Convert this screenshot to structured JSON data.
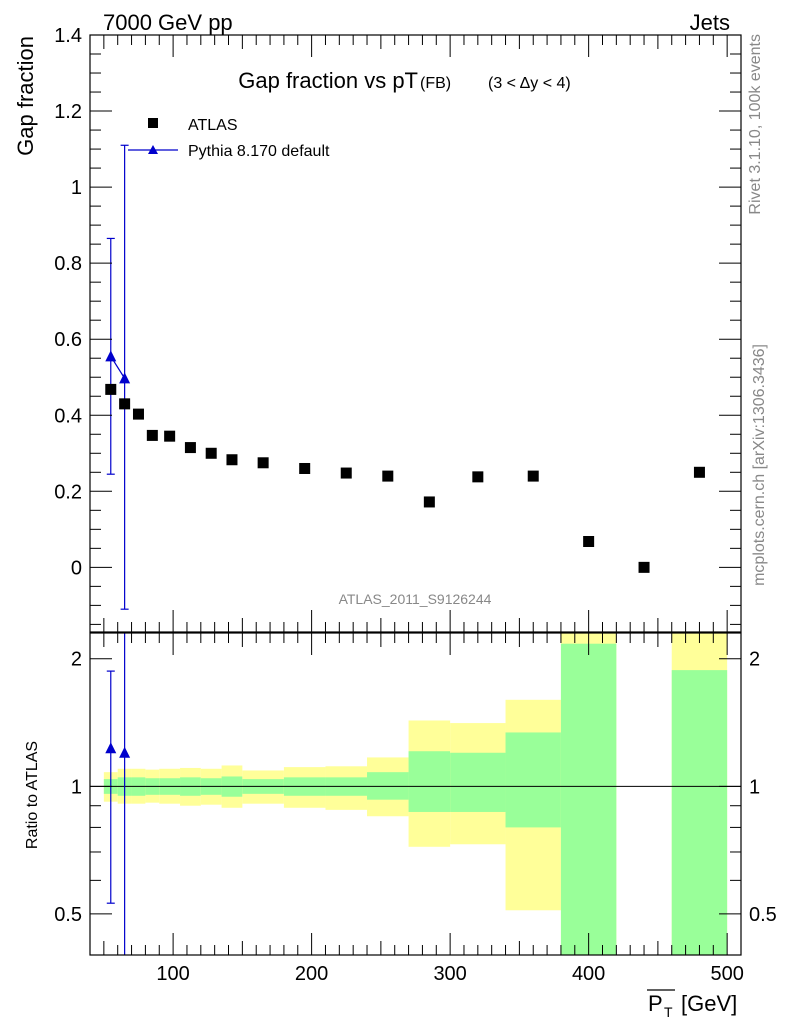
{
  "header": {
    "energy": "7000 GeV pp",
    "process": "Jets"
  },
  "side_labels": {
    "rivet": "Rivet 3.1.10,  100k events",
    "mcplots": "mcplots.cern.ch [arXiv:1306.3436]"
  },
  "colors": {
    "atlas": "#000000",
    "pythia": "#0000cc",
    "band_green": "#99ff99",
    "band_yellow": "#ffff99",
    "analysis_id": "#888888"
  },
  "chart_data": [
    {
      "type": "scatter",
      "panel": "main",
      "title": "Gap fraction vs pT",
      "title_sub": "(FB)",
      "title_range": "(3 < Δy < 4)",
      "ylabel": "Gap fraction",
      "analysis_id": "ATLAS_2011_S9126244",
      "xlim": [
        40,
        510
      ],
      "ylim": [
        -0.17,
        1.4
      ],
      "y_ticks": [
        0,
        0.2,
        0.4,
        0.6,
        0.8,
        1,
        1.2,
        1.4
      ],
      "y_tick_labels": [
        "0",
        "0.2",
        "0.4",
        "0.6",
        "0.8",
        "1",
        "1.2",
        "1.4"
      ],
      "legend_position": "top-left",
      "series": [
        {
          "name": "ATLAS",
          "marker": "square",
          "x": [
            55,
            65,
            75,
            85,
            97.5,
            112.5,
            127.5,
            142.5,
            165,
            195,
            225,
            255,
            285,
            320,
            360,
            400,
            440,
            480
          ],
          "y": [
            0.468,
            0.43,
            0.403,
            0.347,
            0.345,
            0.315,
            0.3,
            0.283,
            0.275,
            0.26,
            0.248,
            0.24,
            0.172,
            0.238,
            0.24,
            0.068,
            0.0,
            0.25
          ]
        },
        {
          "name": "Pythia 8.170 default",
          "marker": "triangle",
          "x": [
            55,
            65
          ],
          "y": [
            0.555,
            0.497
          ],
          "yerr_low": [
            0.245,
            -0.11
          ],
          "yerr_high": [
            0.865,
            1.11
          ]
        }
      ]
    },
    {
      "type": "ratio",
      "panel": "ratio",
      "ylabel": "Ratio to ATLAS",
      "xlabel": "P_T [GeV]",
      "xlabel_main": "P",
      "xlabel_sub": "T",
      "xlabel_unit": "[GeV]",
      "xlim": [
        40,
        510
      ],
      "ylim": [
        0.4,
        2.3
      ],
      "y_scale": "log",
      "x_ticks": [
        100,
        200,
        300,
        400,
        500
      ],
      "x_tick_labels": [
        "100",
        "200",
        "300",
        "400",
        "500"
      ],
      "y_ticks": [
        0.5,
        1,
        2
      ],
      "y_tick_labels": [
        "0.5",
        "1",
        "2"
      ],
      "bands": [
        {
          "x_low": 50,
          "x_high": 60,
          "green_low": 0.96,
          "green_high": 1.04,
          "yellow_low": 0.92,
          "yellow_high": 1.08
        },
        {
          "x_low": 60,
          "x_high": 70,
          "green_low": 0.95,
          "green_high": 1.05,
          "yellow_low": 0.91,
          "yellow_high": 1.1
        },
        {
          "x_low": 70,
          "x_high": 80,
          "green_low": 0.95,
          "green_high": 1.05,
          "yellow_low": 0.91,
          "yellow_high": 1.1
        },
        {
          "x_low": 80,
          "x_high": 90,
          "green_low": 0.955,
          "green_high": 1.045,
          "yellow_low": 0.915,
          "yellow_high": 1.095
        },
        {
          "x_low": 90,
          "x_high": 105,
          "green_low": 0.955,
          "green_high": 1.045,
          "yellow_low": 0.91,
          "yellow_high": 1.1
        },
        {
          "x_low": 105,
          "x_high": 120,
          "green_low": 0.95,
          "green_high": 1.05,
          "yellow_low": 0.9,
          "yellow_high": 1.105
        },
        {
          "x_low": 120,
          "x_high": 135,
          "green_low": 0.955,
          "green_high": 1.045,
          "yellow_low": 0.905,
          "yellow_high": 1.1
        },
        {
          "x_low": 135,
          "x_high": 150,
          "green_low": 0.945,
          "green_high": 1.055,
          "yellow_low": 0.89,
          "yellow_high": 1.12
        },
        {
          "x_low": 150,
          "x_high": 180,
          "green_low": 0.96,
          "green_high": 1.04,
          "yellow_low": 0.91,
          "yellow_high": 1.09
        },
        {
          "x_low": 180,
          "x_high": 210,
          "green_low": 0.95,
          "green_high": 1.05,
          "yellow_low": 0.89,
          "yellow_high": 1.11
        },
        {
          "x_low": 210,
          "x_high": 240,
          "green_low": 0.95,
          "green_high": 1.05,
          "yellow_low": 0.88,
          "yellow_high": 1.115
        },
        {
          "x_low": 240,
          "x_high": 270,
          "green_low": 0.93,
          "green_high": 1.08,
          "yellow_low": 0.85,
          "yellow_high": 1.17
        },
        {
          "x_low": 270,
          "x_high": 300,
          "green_low": 0.87,
          "green_high": 1.21,
          "yellow_low": 0.72,
          "yellow_high": 1.43
        },
        {
          "x_low": 300,
          "x_high": 340,
          "green_low": 0.87,
          "green_high": 1.2,
          "yellow_low": 0.73,
          "yellow_high": 1.41
        },
        {
          "x_low": 340,
          "x_high": 380,
          "green_low": 0.8,
          "green_high": 1.34,
          "yellow_low": 0.51,
          "yellow_high": 1.6
        },
        {
          "x_low": 380,
          "x_high": 420,
          "green_low": 0.4,
          "green_high": 2.17,
          "yellow_low": 0.4,
          "yellow_high": 2.3
        },
        {
          "x_low": 460,
          "x_high": 500,
          "green_low": 0.4,
          "green_high": 1.88,
          "yellow_low": 0.4,
          "yellow_high": 2.3
        }
      ],
      "pythia_ratio": {
        "x": [
          55,
          65
        ],
        "y": [
          1.23,
          1.2
        ],
        "yerr_low": [
          0.53,
          0.4
        ],
        "yerr_high": [
          1.87,
          2.3
        ]
      }
    }
  ]
}
